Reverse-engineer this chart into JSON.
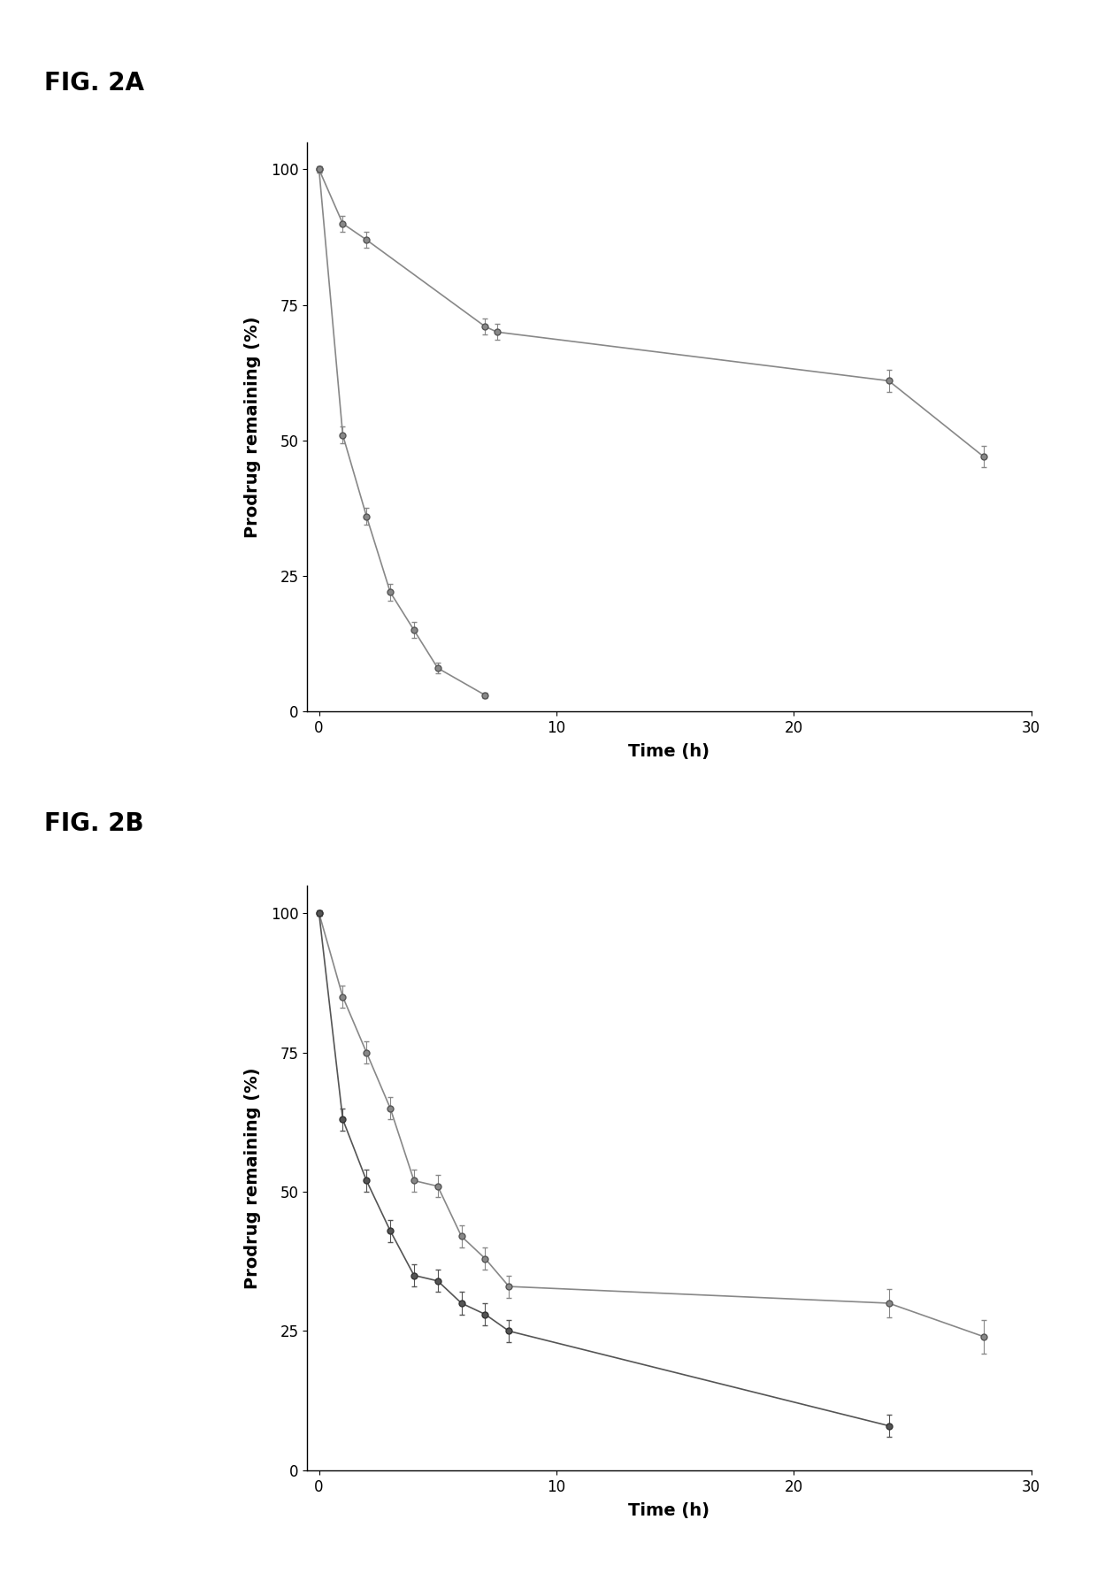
{
  "fig2a": {
    "series1": {
      "x": [
        0,
        1,
        2,
        3,
        4,
        5,
        7
      ],
      "y": [
        100,
        51,
        36,
        22,
        15,
        8,
        3
      ],
      "yerr": [
        0.5,
        1.5,
        1.5,
        1.5,
        1.5,
        1.0,
        0.5
      ]
    },
    "series2": {
      "x": [
        0,
        1,
        2,
        7,
        7.5,
        24,
        28
      ],
      "y": [
        100,
        90,
        87,
        71,
        70,
        61,
        47
      ],
      "yerr": [
        0.5,
        1.5,
        1.5,
        1.5,
        1.5,
        2.0,
        2.0
      ]
    }
  },
  "fig2b": {
    "series1": {
      "x": [
        0,
        1,
        2,
        3,
        4,
        5,
        6,
        7,
        8,
        24,
        28
      ],
      "y": [
        100,
        85,
        75,
        65,
        52,
        51,
        42,
        38,
        33,
        30,
        24
      ],
      "yerr": [
        0.5,
        2,
        2,
        2,
        2,
        2,
        2,
        2,
        2,
        2.5,
        3
      ]
    },
    "series2": {
      "x": [
        0,
        1,
        2,
        3,
        4,
        5,
        6,
        7,
        8,
        24
      ],
      "y": [
        100,
        63,
        52,
        43,
        35,
        34,
        30,
        28,
        25,
        8
      ],
      "yerr": [
        0.5,
        2,
        2,
        2,
        2,
        2,
        2,
        2,
        2,
        2
      ]
    }
  },
  "ylabel": "Prodrug remaining (%)",
  "xlabel": "Time (h)",
  "color": "#888888",
  "line_color": "#555555",
  "background": "#ffffff",
  "ylim": [
    0,
    105
  ],
  "xlim": [
    -0.5,
    30
  ],
  "xticks": [
    0,
    10,
    20,
    30
  ],
  "yticks": [
    0,
    25,
    50,
    75,
    100
  ],
  "marker": "o",
  "markersize": 5,
  "linewidth": 1.2,
  "label_fontsize": 14,
  "tick_fontsize": 12,
  "fig2a_label": "FIG. 2A",
  "fig2b_label": "FIG. 2B"
}
